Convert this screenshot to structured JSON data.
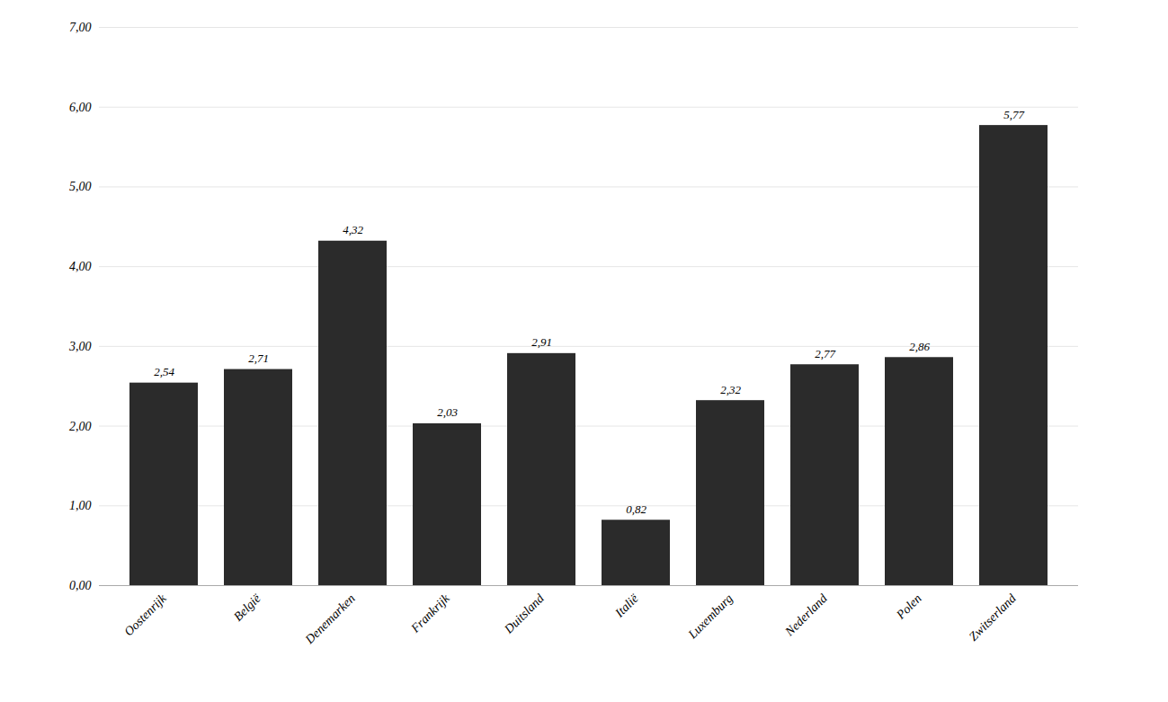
{
  "chart_data": {
    "type": "bar",
    "categories": [
      "Oostenrijk",
      "België",
      "Denemarken",
      "Frankrijk",
      "Duitsland",
      "Italië",
      "Luxemburg",
      "Nederland",
      "Polen",
      "Zwitserland"
    ],
    "values": [
      2.54,
      2.71,
      4.32,
      2.03,
      2.91,
      0.82,
      2.32,
      2.77,
      2.86,
      5.77
    ],
    "value_labels": [
      "2,54",
      "2,71",
      "4,32",
      "2,03",
      "2,91",
      "0,82",
      "2,32",
      "2,77",
      "2,86",
      "5,77"
    ],
    "data_labels": true,
    "color": "#2b2b2b",
    "ylim": [
      0,
      7.0
    ],
    "yticks": [
      {
        "value": 0.0,
        "label": "0,00"
      },
      {
        "value": 1.0,
        "label": "1,00"
      },
      {
        "value": 2.0,
        "label": "2,00"
      },
      {
        "value": 3.0,
        "label": "3,00"
      },
      {
        "value": 4.0,
        "label": "4,00"
      },
      {
        "value": 5.0,
        "label": "5,00"
      },
      {
        "value": 6.0,
        "label": "6,00"
      },
      {
        "value": 7.0,
        "label": "7,00"
      }
    ],
    "grid": true
  }
}
